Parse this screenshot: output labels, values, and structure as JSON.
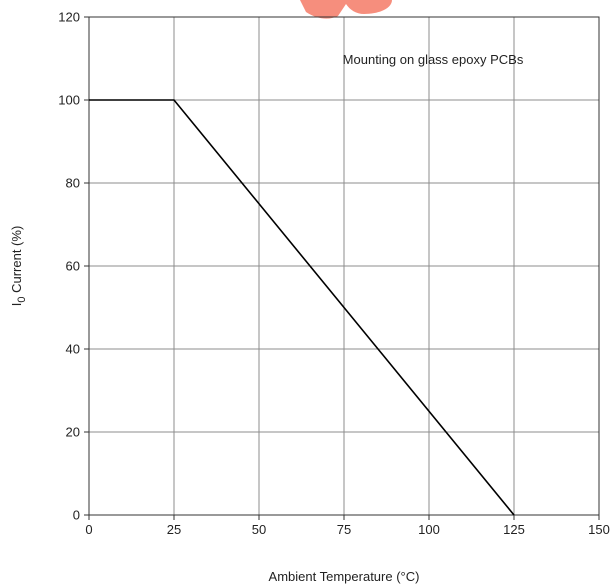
{
  "chart_data": {
    "type": "line",
    "title": "",
    "xlabel": "Ambient Temperature (°C)",
    "ylabel": {
      "main": "I",
      "subscript": "0",
      "rest": " Current (%)"
    },
    "xlim": [
      0,
      150
    ],
    "ylim": [
      0,
      120
    ],
    "x_ticks": [
      0,
      25,
      50,
      75,
      100,
      125,
      150
    ],
    "y_ticks": [
      0,
      20,
      40,
      60,
      80,
      100,
      120
    ],
    "grid": true,
    "annotation": "Mounting on glass epoxy PCBs",
    "series": [
      {
        "x": [
          0,
          25,
          125
        ],
        "y": [
          100,
          100,
          0
        ],
        "color": "#000000"
      }
    ]
  },
  "colors": {
    "grid": "#8c8c8c",
    "line": "#000000",
    "watermark": "#f47a66"
  },
  "watermark": {
    "icon": "brand-logo-partial"
  }
}
